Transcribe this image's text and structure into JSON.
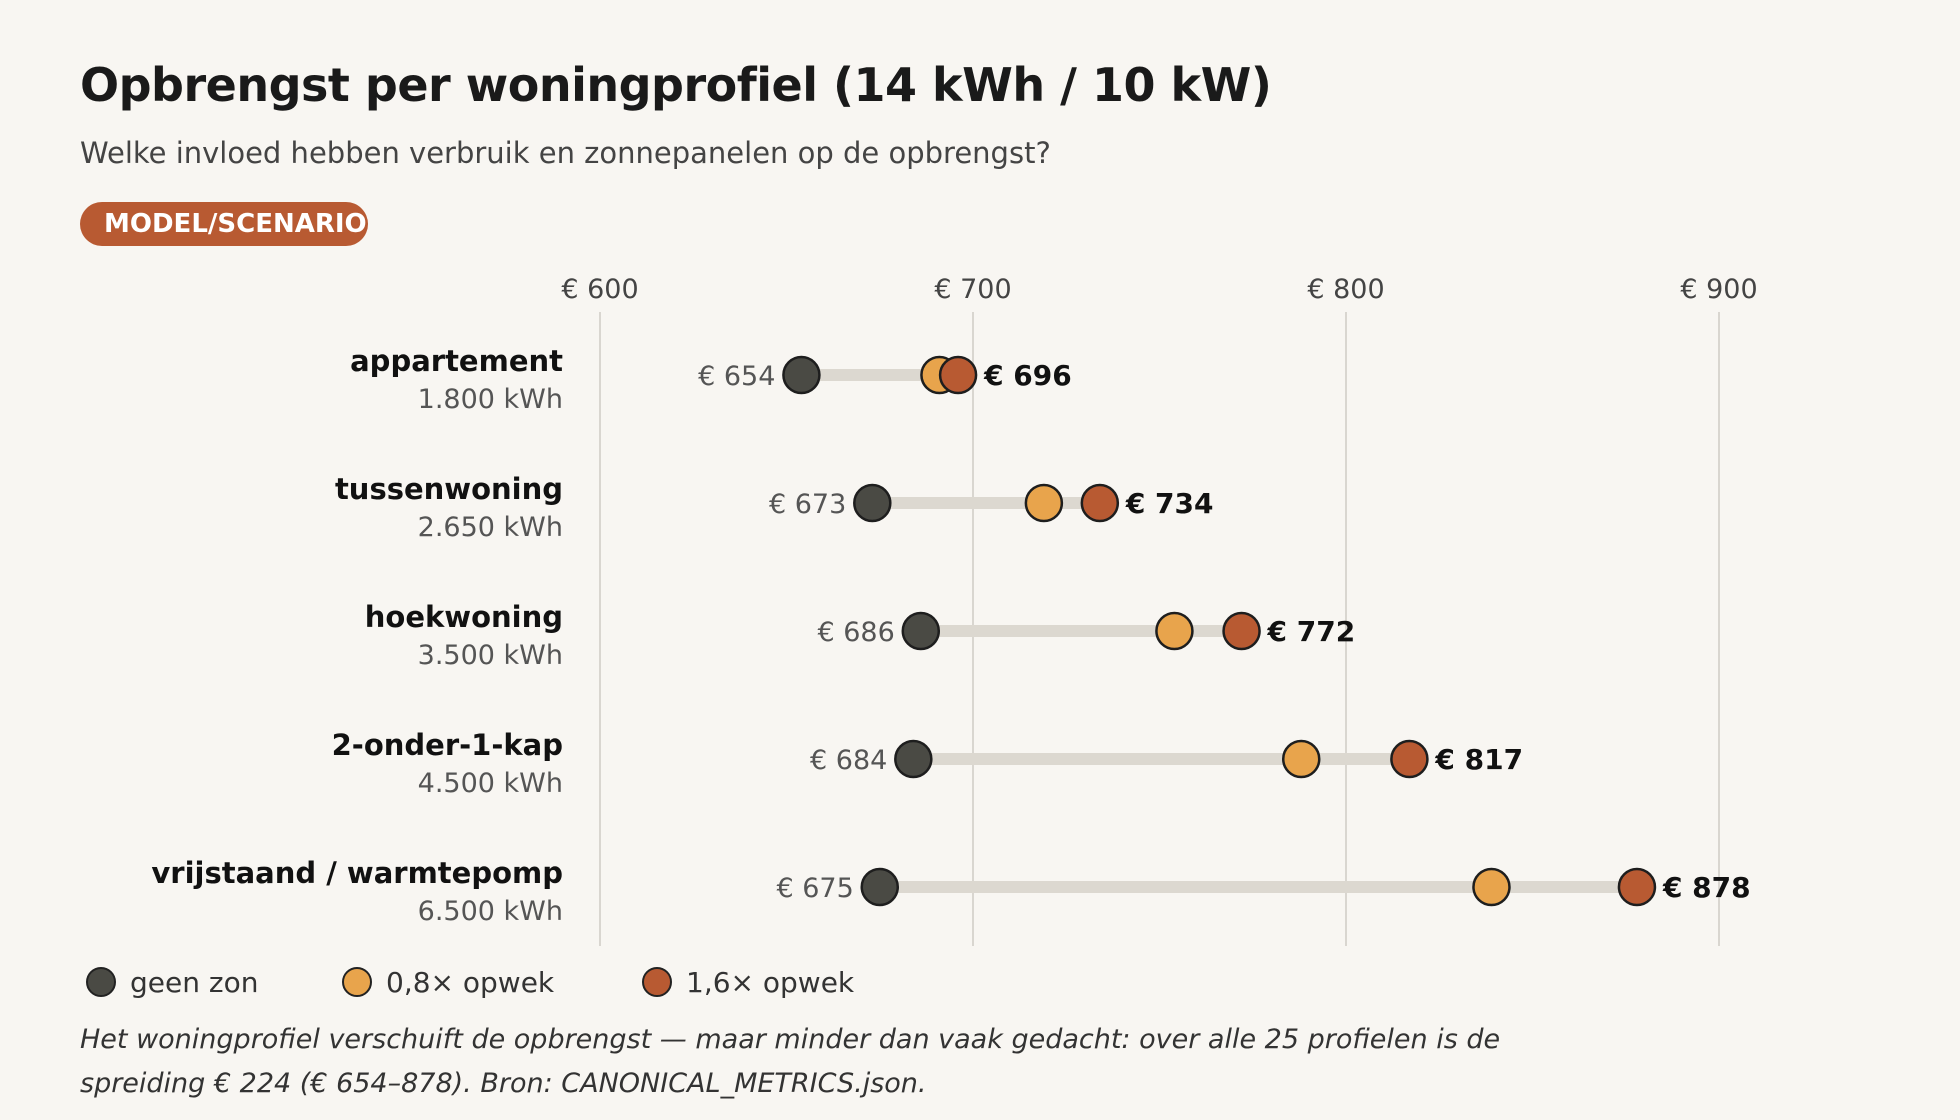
{
  "title": "Opbrengst per woningprofiel (14 kWh / 10 kW)",
  "subtitle": "Welke invloed hebben verbruik en zonnepanelen op de opbrengst?",
  "badge": "MODEL/SCENARIO",
  "legend": {
    "items": [
      {
        "label": "geen zon",
        "color": "#4a4a44"
      },
      {
        "label": "0,8× opwek",
        "color": "#e8a44c"
      },
      {
        "label": "1,6× opwek",
        "color": "#b85a32"
      }
    ]
  },
  "note": "Het woningprofiel verschuift de opbrengst — maar minder dan vaak gedacht: over alle 25 profielen is de spreiding € 224 (€ 654–878). Bron: CANONICAL_METRICS.json.",
  "chart_data": {
    "type": "scatter",
    "xlim": [
      540,
      935
    ],
    "ticks": [
      600,
      700,
      800,
      900
    ],
    "tick_labels": [
      "€ 600",
      "€ 700",
      "€ 800",
      "€ 900"
    ],
    "grid": true,
    "legend_position": "bottom-left",
    "categories": [
      "appartement",
      "tussenwoning",
      "hoekwoning",
      "2-onder-1-kap",
      "vrijstaand / warmtepomp"
    ],
    "category_sublabels": [
      "1.800 kWh",
      "2.650 kWh",
      "3.500 kWh",
      "4.500 kWh",
      "6.500 kWh"
    ],
    "series": [
      {
        "name": "geen zon",
        "color": "#4a4a44",
        "values": [
          654,
          673,
          686,
          684,
          675
        ],
        "labels": [
          "€ 654",
          "€ 673",
          "€ 686",
          "€ 684",
          "€ 675"
        ]
      },
      {
        "name": "0,8× opwek",
        "color": "#e8a44c",
        "values": [
          691,
          719,
          754,
          788,
          839
        ]
      },
      {
        "name": "1,6× opwek",
        "color": "#b85a32",
        "values": [
          696,
          734,
          772,
          817,
          878
        ],
        "labels": [
          "€ 696",
          "€ 734",
          "€ 772",
          "€ 817",
          "€ 878"
        ]
      }
    ]
  }
}
